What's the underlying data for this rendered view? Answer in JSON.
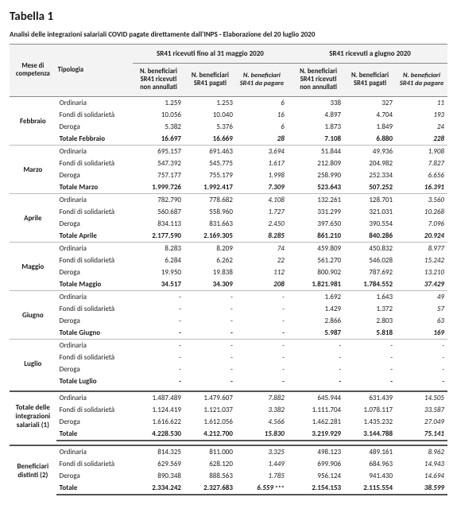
{
  "title": "Tabella 1",
  "subtitle": "Analisi delle integrazioni salariali COVID pagate direttamente dall'INPS - Elaborazione del 20 luglio 2020",
  "group_a": "SR41 ricevuti fino al 31 maggio 2020",
  "group_b": "SR41 ricevuti a giugno 2020",
  "col_mese": "Mese di competenza",
  "col_tip": "Tipologia",
  "col_a1": "N. beneficiari SR41 ricevuti non annullati",
  "col_a2": "N. beneficiari SR41 pagati",
  "col_a3": "N. beneficiari SR41 da pagare",
  "col_b1": "N. beneficiari SR41 ricevuti non annullati",
  "col_b2": "N. beneficiari SR41 pagati",
  "col_b3": "N. beneficiari SR41 da pagare",
  "tip": {
    "ord": "Ordinaria",
    "fds": "Fondi di solidarietà",
    "der": "Deroga"
  },
  "months": {
    "feb": {
      "label": "Febbraio",
      "tot": "Totale Febbraio",
      "ord": {
        "a1": "1.259",
        "a2": "1.253",
        "a3": "6",
        "b1": "338",
        "b2": "327",
        "b3": "11"
      },
      "fds": {
        "a1": "10.056",
        "a2": "10.040",
        "a3": "16",
        "b1": "4.897",
        "b2": "4.704",
        "b3": "193"
      },
      "der": {
        "a1": "5.382",
        "a2": "5.376",
        "a3": "6",
        "b1": "1.873",
        "b2": "1.849",
        "b3": "24"
      },
      "t": {
        "a1": "16.697",
        "a2": "16.669",
        "a3": "28",
        "b1": "7.108",
        "b2": "6.880",
        "b3": "228"
      }
    },
    "mar": {
      "label": "Marzo",
      "tot": "Totale Marzo",
      "ord": {
        "a1": "695.157",
        "a2": "691.463",
        "a3": "3.694",
        "b1": "51.844",
        "b2": "49.936",
        "b3": "1.908"
      },
      "fds": {
        "a1": "547.392",
        "a2": "545.775",
        "a3": "1.617",
        "b1": "212.809",
        "b2": "204.982",
        "b3": "7.827"
      },
      "der": {
        "a1": "757.177",
        "a2": "755.179",
        "a3": "1.998",
        "b1": "258.990",
        "b2": "252.334",
        "b3": "6.656"
      },
      "t": {
        "a1": "1.999.726",
        "a2": "1.992.417",
        "a3": "7.309",
        "b1": "523.643",
        "b2": "507.252",
        "b3": "16.391"
      }
    },
    "apr": {
      "label": "Aprile",
      "tot": "Totale Aprile",
      "ord": {
        "a1": "782.790",
        "a2": "778.682",
        "a3": "4.108",
        "b1": "132.261",
        "b2": "128.701",
        "b3": "3.560"
      },
      "fds": {
        "a1": "560.687",
        "a2": "558.960",
        "a3": "1.727",
        "b1": "331.299",
        "b2": "321.031",
        "b3": "10.268"
      },
      "der": {
        "a1": "834.113",
        "a2": "831.663",
        "a3": "2.450",
        "b1": "397.650",
        "b2": "390.554",
        "b3": "7.096"
      },
      "t": {
        "a1": "2.177.590",
        "a2": "2.169.305",
        "a3": "8.285",
        "b1": "861.210",
        "b2": "840.286",
        "b3": "20.924"
      }
    },
    "mag": {
      "label": "Maggio",
      "tot": "Totale Maggio",
      "ord": {
        "a1": "8.283",
        "a2": "8.209",
        "a3": "74",
        "b1": "459.809",
        "b2": "450.832",
        "b3": "8.977"
      },
      "fds": {
        "a1": "6.284",
        "a2": "6.262",
        "a3": "22",
        "b1": "561.270",
        "b2": "546.028",
        "b3": "15.242"
      },
      "der": {
        "a1": "19.950",
        "a2": "19.838",
        "a3": "112",
        "b1": "800.902",
        "b2": "787.692",
        "b3": "13.210"
      },
      "t": {
        "a1": "34.517",
        "a2": "34.309",
        "a3": "208",
        "b1": "1.821.981",
        "b2": "1.784.552",
        "b3": "37.429"
      }
    },
    "giu": {
      "label": "Giugno",
      "tot": "Totale Giugno",
      "ord": {
        "a1": "-",
        "a2": "-",
        "a3": "-",
        "b1": "1.692",
        "b2": "1.643",
        "b3": "49"
      },
      "fds": {
        "a1": "-",
        "a2": "-",
        "a3": "-",
        "b1": "1.429",
        "b2": "1.372",
        "b3": "57"
      },
      "der": {
        "a1": "-",
        "a2": "-",
        "a3": "-",
        "b1": "2.866",
        "b2": "2.803",
        "b3": "63"
      },
      "t": {
        "a1": "-",
        "a2": "-",
        "a3": "-",
        "b1": "5.987",
        "b2": "5.818",
        "b3": "169"
      }
    },
    "lug": {
      "label": "Luglio",
      "tot": "Totale Luglio",
      "ord": {
        "a1": "-",
        "a2": "-",
        "a3": "-",
        "b1": "-",
        "b2": "-",
        "b3": "-"
      },
      "fds": {
        "a1": "-",
        "a2": "-",
        "a3": "-",
        "b1": "-",
        "b2": "-",
        "b3": "-"
      },
      "der": {
        "a1": "-",
        "a2": "-",
        "a3": "-",
        "b1": "-",
        "b2": "-",
        "b3": "-"
      },
      "t": {
        "a1": "-",
        "a2": "-",
        "a3": "-",
        "b1": "-",
        "b2": "-",
        "b3": "-"
      }
    }
  },
  "bloc1": {
    "label": "Totale delle integrazioni salariali (1)",
    "tot": "Totale",
    "ord": {
      "a1": "1.487.489",
      "a2": "1.479.607",
      "a3": "7.882",
      "b1": "645.944",
      "b2": "631.439",
      "b3": "14.505"
    },
    "fds": {
      "a1": "1.124.419",
      "a2": "1.121.037",
      "a3": "3.382",
      "b1": "1.111.704",
      "b2": "1.078.117",
      "b3": "33.587"
    },
    "der": {
      "a1": "1.616.622",
      "a2": "1.612.056",
      "a3": "4.566",
      "b1": "1.462.281",
      "b2": "1.435.232",
      "b3": "27.049"
    },
    "t": {
      "a1": "4.228.530",
      "a2": "4.212.700",
      "a3": "15.830",
      "b1": "3.219.929",
      "b2": "3.144.788",
      "b3": "75.141"
    }
  },
  "bloc2": {
    "label": "Beneficiari distinti (2)",
    "tot": "Totale",
    "stars": "***",
    "ord": {
      "a1": "814.325",
      "a2": "811.000",
      "a3": "3.325",
      "b1": "498.123",
      "b2": "489.161",
      "b3": "8.962"
    },
    "fds": {
      "a1": "629.569",
      "a2": "628.120",
      "a3": "1.449",
      "b1": "699.906",
      "b2": "684.963",
      "b3": "14.943"
    },
    "der": {
      "a1": "890.348",
      "a2": "888.563",
      "a3": "1.785",
      "b1": "956.124",
      "b2": "941.430",
      "b3": "14.694"
    },
    "t": {
      "a1": "2.334.242",
      "a2": "2.327.683",
      "a3": "6.559",
      "b1": "2.154.153",
      "b2": "2.115.554",
      "b3": "38.599"
    }
  }
}
